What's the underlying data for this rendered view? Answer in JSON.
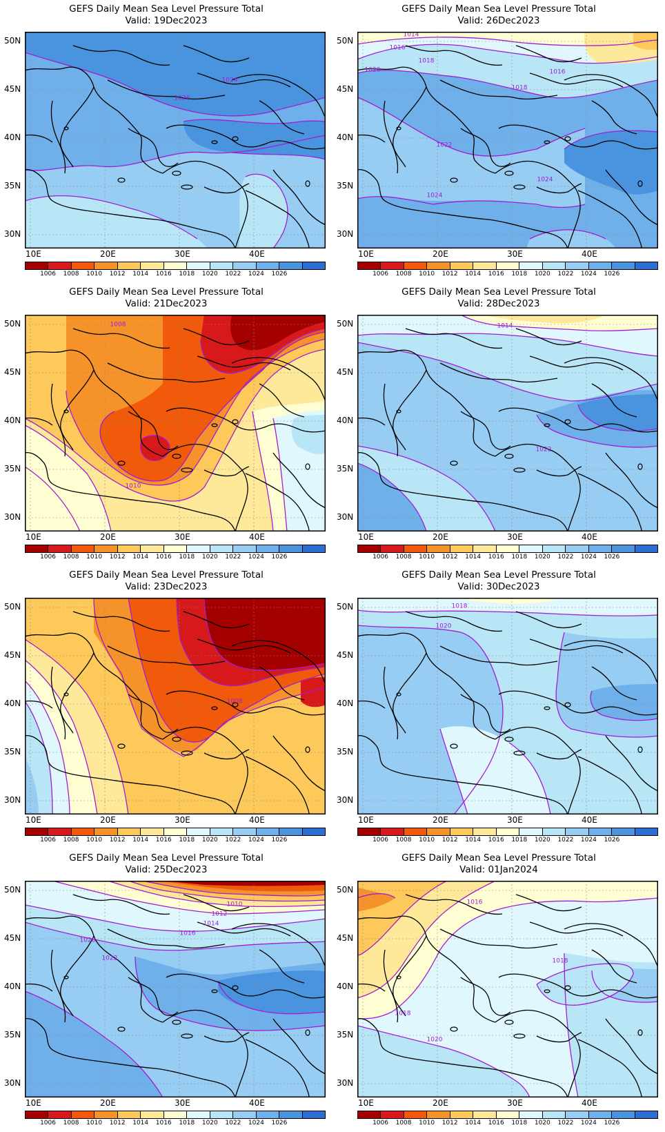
{
  "figure": {
    "colorbar": {
      "colors": [
        "#a50000",
        "#d7191c",
        "#f05a0a",
        "#f6922a",
        "#fcc95a",
        "#fee99a",
        "#fffdd2",
        "#dff7fd",
        "#b8e6f7",
        "#97cdf2",
        "#6fb0ea",
        "#4a94df",
        "#2c6ed1"
      ],
      "labels": [
        "1006",
        "1008",
        "1010",
        "1012",
        "1014",
        "1016",
        "1018",
        "1020",
        "1022",
        "1024",
        "1026"
      ]
    },
    "lat_ticks": [
      "50N",
      "45N",
      "40N",
      "35N",
      "30N"
    ],
    "lon_ticks": [
      "10E",
      "20E",
      "30E",
      "40E"
    ],
    "contour_color": "#a21dd2",
    "panels": [
      {
        "id": "p1",
        "title": "GEFS Daily Mean Sea Level Pressure Total",
        "valid": "Valid: 19Dec2023",
        "labels": [
          "1024",
          "1026"
        ]
      },
      {
        "id": "p2",
        "title": "GEFS Daily Mean Sea Level Pressure Total",
        "valid": "Valid: 26Dec2023",
        "labels": [
          "1014",
          "1016",
          "1018",
          "1020",
          "1016",
          "1018",
          "1022",
          "1024",
          "1024"
        ]
      },
      {
        "id": "p3",
        "title": "GEFS Daily Mean Sea Level Pressure Total",
        "valid": "Valid: 21Dec2023",
        "labels": [
          "1008",
          "1010"
        ]
      },
      {
        "id": "p4",
        "title": "GEFS Daily Mean Sea Level Pressure Total",
        "valid": "Valid: 28Dec2023",
        "labels": [
          "1014",
          "1022"
        ]
      },
      {
        "id": "p5",
        "title": "GEFS Daily Mean Sea Level Pressure Total",
        "valid": "Valid: 23Dec2023",
        "labels": [
          "1008"
        ]
      },
      {
        "id": "p6",
        "title": "GEFS Daily Mean Sea Level Pressure Total",
        "valid": "Valid: 30Dec2023",
        "labels": [
          "1018",
          "1020"
        ]
      },
      {
        "id": "p7",
        "title": "GEFS Daily Mean Sea Level Pressure Total",
        "valid": "Valid: 25Dec2023",
        "labels": [
          "1010",
          "1012",
          "1014",
          "1016",
          "1020",
          "1022"
        ]
      },
      {
        "id": "p8",
        "title": "GEFS Daily Mean Sea Level Pressure Total",
        "valid": "Valid: 01Jan2024",
        "labels": [
          "1016",
          "1018",
          "1018",
          "1020"
        ]
      }
    ]
  }
}
